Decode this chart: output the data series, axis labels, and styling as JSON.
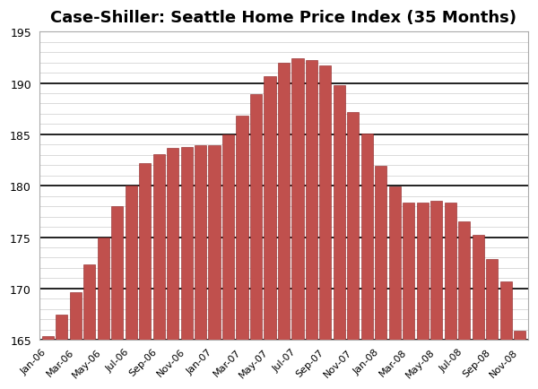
{
  "title": "Case-Shiller: Seattle Home Price Index (35 Months)",
  "values": [
    165.4,
    167.5,
    169.6,
    172.3,
    175.0,
    178.0,
    180.0,
    182.2,
    183.1,
    183.7,
    183.8,
    183.9,
    183.9,
    185.0,
    186.8,
    188.9,
    190.7,
    192.0,
    192.4,
    192.2,
    191.7,
    189.8,
    187.2,
    185.1,
    181.9,
    179.9,
    178.4,
    178.4,
    178.5,
    178.4,
    176.5,
    175.2,
    172.9,
    170.7,
    165.9
  ],
  "labels": [
    "Jan-06",
    "Mar-06",
    "May-06",
    "Jul-06",
    "Sep-06",
    "Nov-06",
    "Jan-07",
    "Mar-07",
    "May-07",
    "Jul-07",
    "Sep-07",
    "Nov-07",
    "Jan-08",
    "Mar-08",
    "May-08",
    "Jul-08",
    "Sep-08",
    "Nov-08"
  ],
  "label_indices": [
    0,
    2,
    4,
    6,
    8,
    10,
    12,
    14,
    16,
    18,
    20,
    22,
    24,
    26,
    28,
    30,
    32,
    34
  ],
  "bar_color": "#C0504D",
  "bar_edge_color": "#8B2020",
  "ylim": [
    165,
    195
  ],
  "ymin": 165,
  "yticks": [
    165,
    170,
    175,
    180,
    185,
    190,
    195
  ],
  "background_color": "#FFFFFF",
  "grid_major_color": "#000000",
  "grid_minor_color": "#CCCCCC",
  "title_fontsize": 13,
  "border_color": "#AAAAAA"
}
